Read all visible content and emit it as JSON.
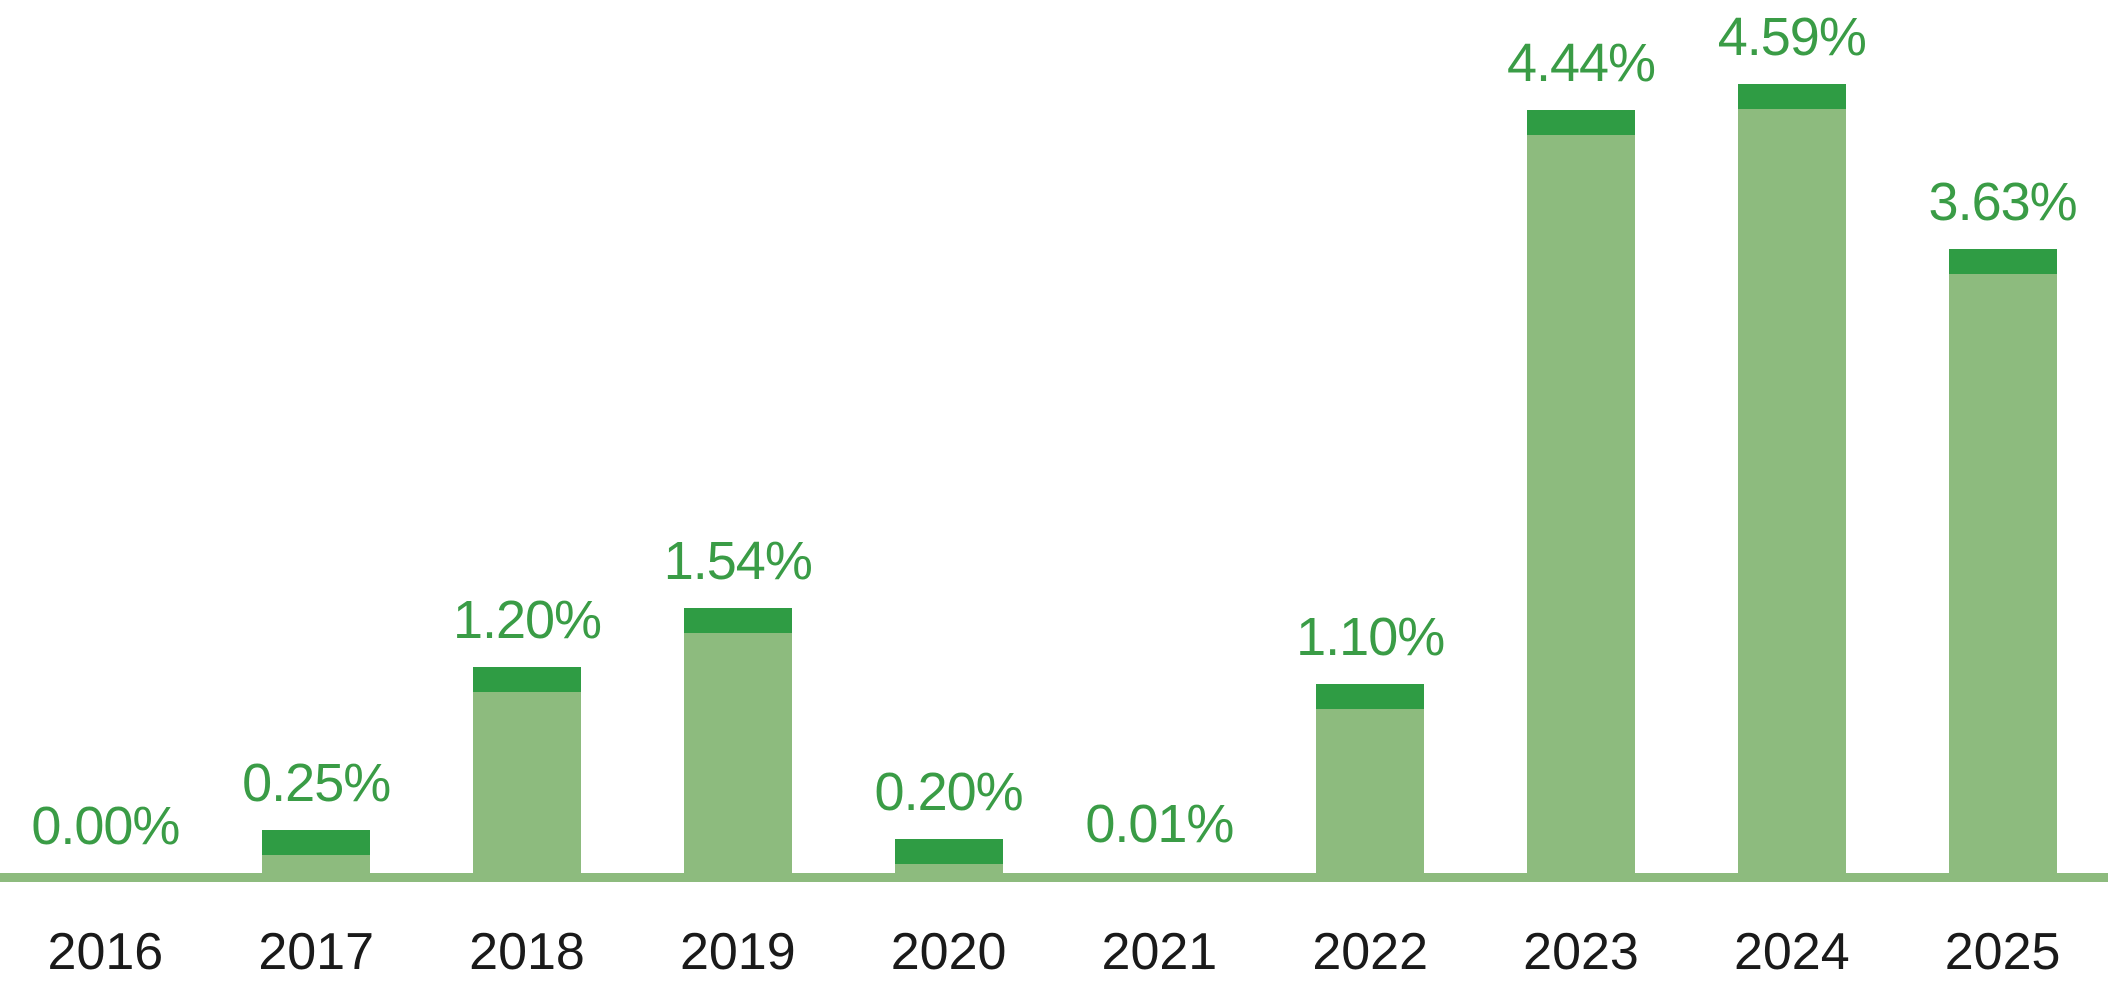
{
  "chart_data": {
    "type": "bar",
    "title": "",
    "xlabel": "",
    "ylabel": "",
    "categories": [
      "2016",
      "2017",
      "2018",
      "2019",
      "2020",
      "2021",
      "2022",
      "2023",
      "2024",
      "2025"
    ],
    "values": [
      0.0,
      0.25,
      1.2,
      1.54,
      0.2,
      0.01,
      1.1,
      4.44,
      4.59,
      3.63
    ],
    "value_labels": [
      "0.00%",
      "0.25%",
      "1.20%",
      "1.54%",
      "0.20%",
      "0.01%",
      "1.10%",
      "4.44%",
      "4.59%",
      "3.63%"
    ],
    "unit": "%",
    "ylim": [
      0,
      5.2
    ],
    "grid": false,
    "legend": false,
    "colors": {
      "bar_body": "#8dbb7e",
      "bar_cap": "#2f9c44",
      "baseline": "#8dbb7e",
      "value_label": "#3a9c46",
      "category_label": "#1a1a1a",
      "background": "#ffffff"
    }
  }
}
